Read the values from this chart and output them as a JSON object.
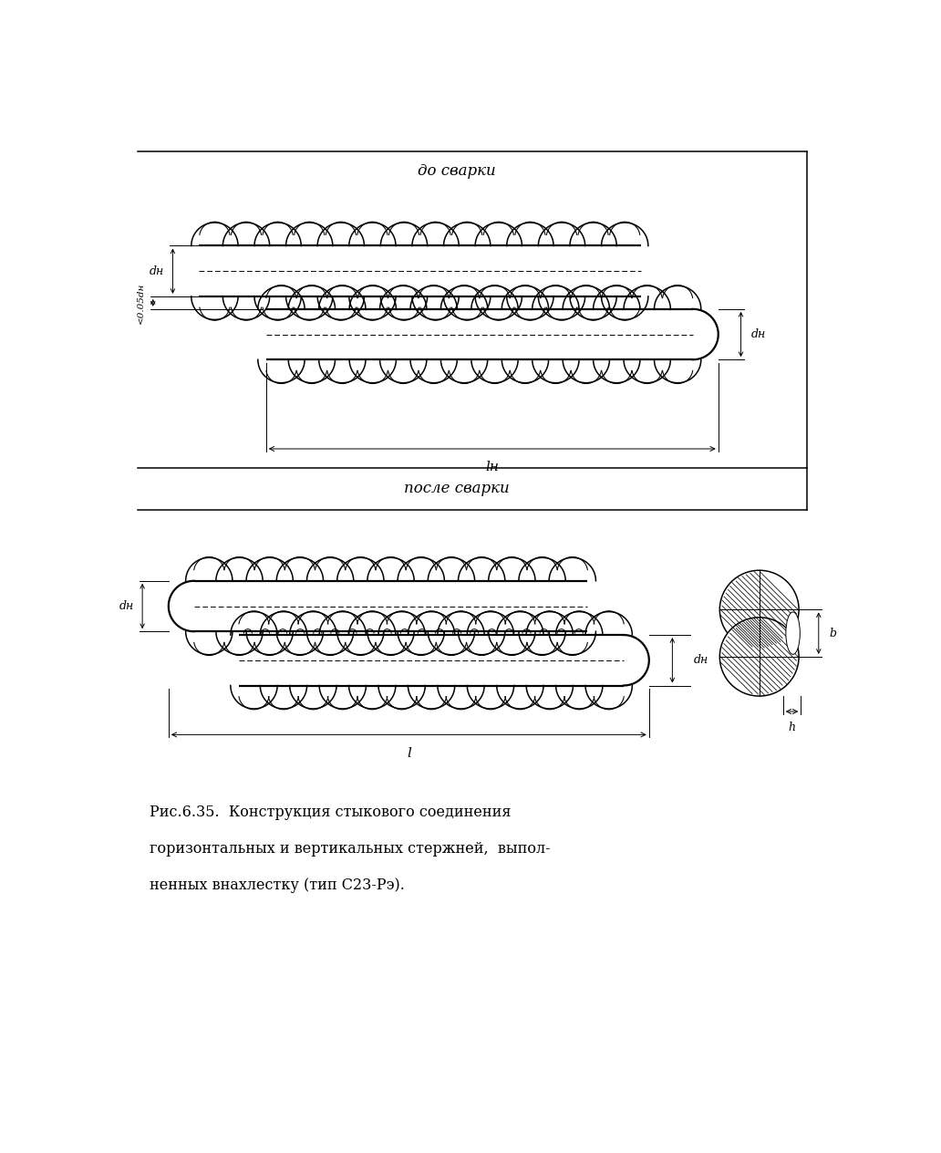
{
  "bg_color": "#ffffff",
  "line_color": "#000000",
  "fig_width": 10.32,
  "fig_height": 12.64,
  "text_do_svarki": "до сварки",
  "text_posle_svarki": "после сварки",
  "label_dn": "dн",
  "label_005dn": "<0.05dн",
  "label_ln": "lн",
  "label_l": "l",
  "label_b": "b",
  "label_h": "h",
  "caption_line1": "Рис.6.35.  Конструкция стыкового соединения",
  "caption_line2": "горизонтальных и вертикальных стержней,  выпол-",
  "caption_line3": "ненных внахлестку (тип С23-Рэ)."
}
